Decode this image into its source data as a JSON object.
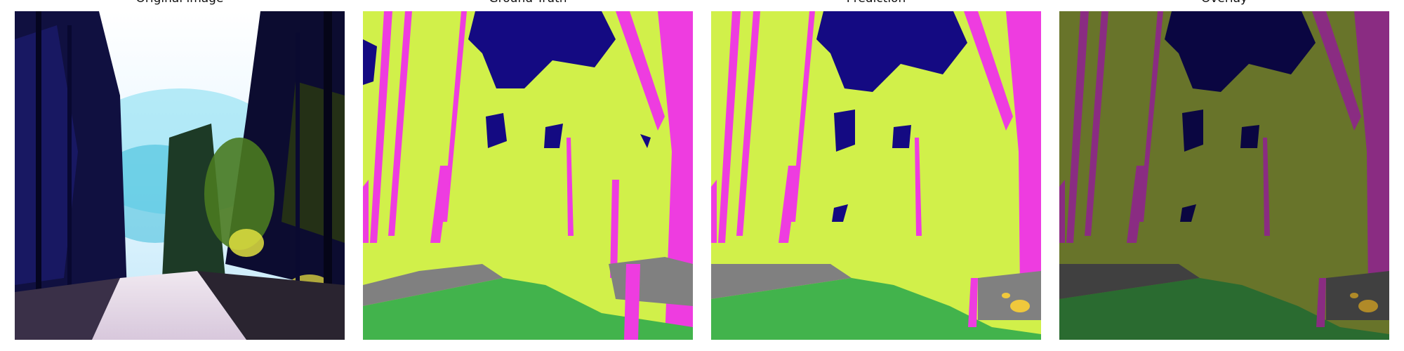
{
  "figure": {
    "panels": [
      {
        "title": "Original image"
      },
      {
        "title": "Ground Truth"
      },
      {
        "title": "Prediction"
      },
      {
        "title": "Overlay"
      }
    ]
  },
  "palette": {
    "background_class": "#d1f04a",
    "sky": "#140a82",
    "trees": "#ee3ce0",
    "ground": "#808080",
    "grass": "#42b34c",
    "yellow_object": "#f0c83c",
    "overlay_background": "#68742a",
    "overlay_sky": "#0a0641",
    "overlay_trees": "#8a2c82",
    "overlay_ground": "#404040",
    "overlay_grass": "#2a6b30",
    "overlay_yellow": "#b08a28"
  }
}
